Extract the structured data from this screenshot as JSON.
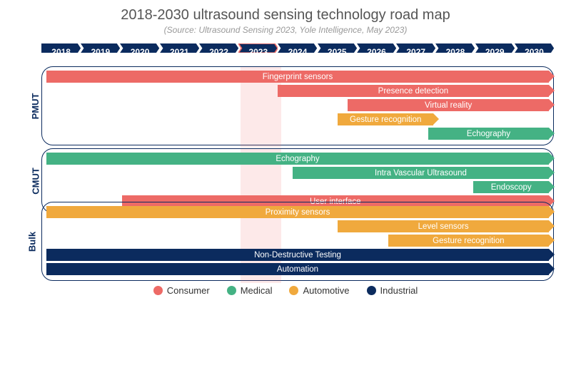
{
  "title": "2018-2030 ultrasound sensing technology road map",
  "subtitle": "(Source: Ultrasound Sensing 2023, Yole Intelligence, May 2023)",
  "colors": {
    "consumer": "#ed6a66",
    "medical": "#44b284",
    "automotive": "#f0a93d",
    "industrial": "#0b2b5e",
    "timeline": "#0b2b5e",
    "border": "#0b2b5e",
    "highlight_border": "#ed6a66",
    "title_color": "#555555",
    "subtitle_color": "#999999"
  },
  "timeline": {
    "years": [
      "2018",
      "2019",
      "2020",
      "2021",
      "2022",
      "2023",
      "2024",
      "2025",
      "2026",
      "2027",
      "2028",
      "2029",
      "2030"
    ],
    "highlight_year": "2023"
  },
  "sections": [
    {
      "name": "PMUT",
      "bars": [
        {
          "label": "Fingerprint sensors",
          "category": "consumer",
          "start_frac": 0.0,
          "end_frac": 1.0
        },
        {
          "label": "Presence detection",
          "category": "consumer",
          "start_frac": 0.46,
          "end_frac": 1.0
        },
        {
          "label": "Virtual reality",
          "category": "consumer",
          "start_frac": 0.6,
          "end_frac": 1.0
        },
        {
          "label": "Gesture recognition",
          "category": "automotive",
          "start_frac": 0.58,
          "end_frac": 0.77
        },
        {
          "label": "Echography",
          "category": "medical",
          "start_frac": 0.76,
          "end_frac": 1.0
        }
      ]
    },
    {
      "name": "CMUT",
      "bars": [
        {
          "label": "Echography",
          "category": "medical",
          "start_frac": 0.0,
          "end_frac": 1.0
        },
        {
          "label": "Intra Vascular Ultrasound",
          "category": "medical",
          "start_frac": 0.49,
          "end_frac": 1.0
        },
        {
          "label": "Endoscopy",
          "category": "medical",
          "start_frac": 0.85,
          "end_frac": 1.0
        },
        {
          "label": "User interface",
          "category": "consumer",
          "start_frac": 0.15,
          "end_frac": 1.0
        }
      ]
    },
    {
      "name": "Bulk",
      "bars": [
        {
          "label": "Proximity sensors",
          "category": "automotive",
          "start_frac": 0.0,
          "end_frac": 1.0
        },
        {
          "label": "Level sensors",
          "category": "automotive",
          "start_frac": 0.58,
          "end_frac": 1.0
        },
        {
          "label": "Gesture recognition",
          "category": "automotive",
          "start_frac": 0.68,
          "end_frac": 1.0
        },
        {
          "label": "Non-Destructive Testing",
          "category": "industrial",
          "start_frac": 0.0,
          "end_frac": 1.0
        },
        {
          "label": "Automation",
          "category": "industrial",
          "start_frac": 0.0,
          "end_frac": 1.0
        }
      ]
    }
  ],
  "legend": [
    {
      "label": "Consumer",
      "category": "consumer"
    },
    {
      "label": "Medical",
      "category": "medical"
    },
    {
      "label": "Automotive",
      "category": "automotive"
    },
    {
      "label": "Industrial",
      "category": "industrial"
    }
  ]
}
